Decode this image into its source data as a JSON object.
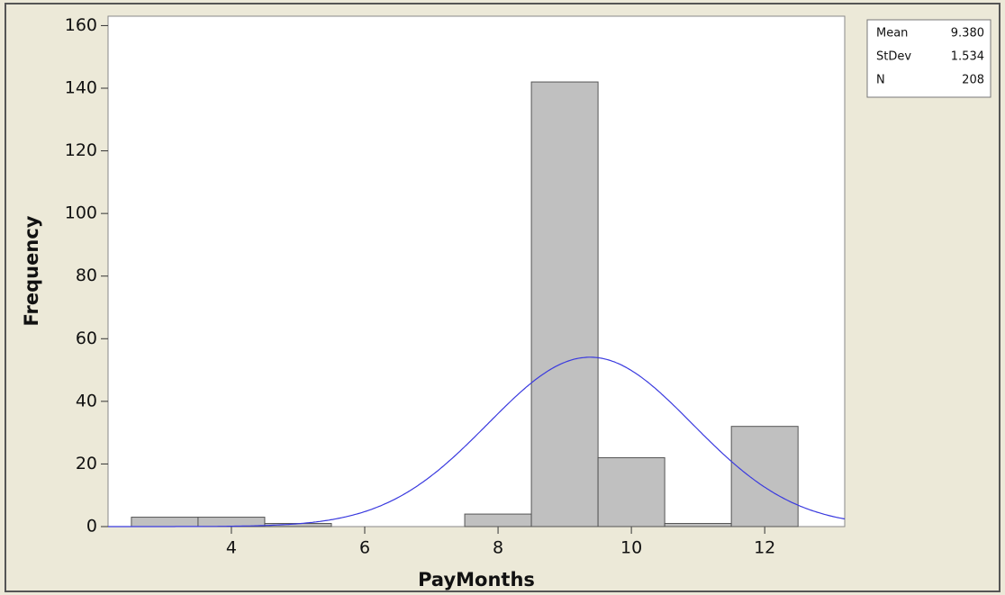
{
  "chart_data": {
    "type": "histogram",
    "x_label": "PayMonths",
    "y_label": "Frequency",
    "bins": [
      2.5,
      3.5,
      4.5,
      5.5,
      6.5,
      7.5,
      8.5,
      9.5,
      10.5,
      11.5,
      12.5
    ],
    "values": [
      3,
      3,
      1,
      0,
      0,
      4,
      142,
      22,
      1,
      32
    ],
    "color": "#c0c0c0",
    "edge_color": "#555555",
    "curve_color": "#3a3adf",
    "xlim": [
      2.15,
      13.2
    ],
    "xticks": [
      4,
      6,
      8,
      10,
      12
    ],
    "ylim": [
      0,
      163
    ],
    "yticks": [
      0,
      20,
      40,
      60,
      80,
      100,
      120,
      140,
      160
    ],
    "stats": [
      {
        "name": "Mean",
        "value": 9.38,
        "label": "9.380"
      },
      {
        "name": "StDev",
        "value": 1.534,
        "label": "1.534"
      },
      {
        "name": "N",
        "value": 208
      }
    ]
  }
}
